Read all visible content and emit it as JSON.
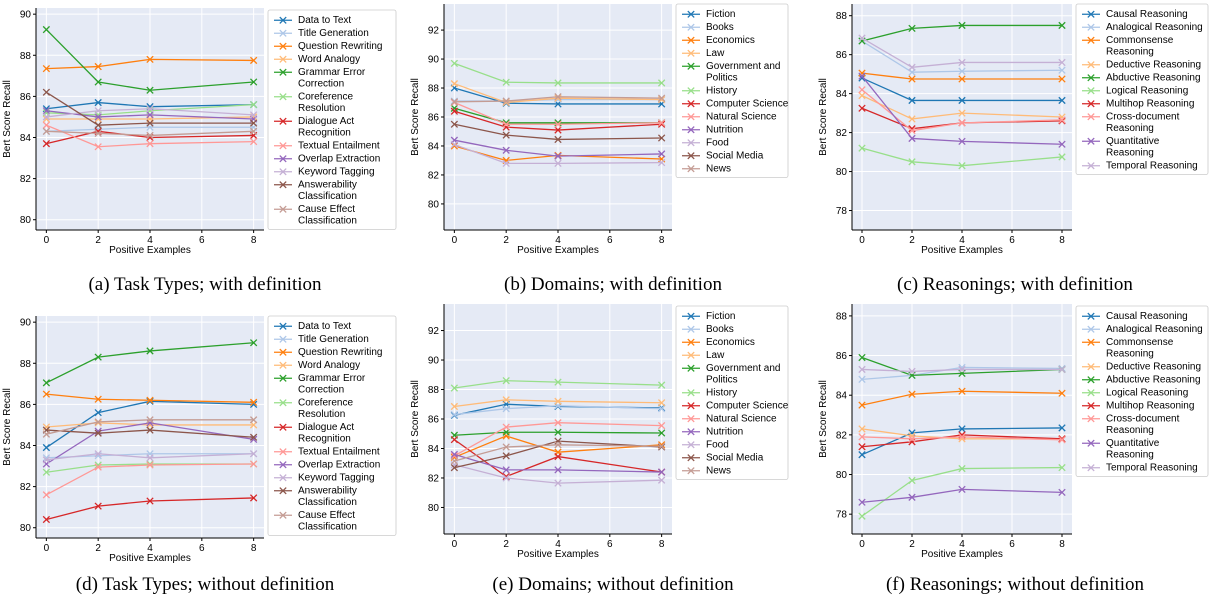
{
  "chart_data": [
    {
      "type": "line",
      "caption": "(a) Task Types; with definition",
      "xlabel": "Positive Examples",
      "ylabel": "Bert Score Recall",
      "x": [
        0,
        2,
        4,
        8
      ],
      "xticks": [
        0,
        2,
        4,
        6,
        8
      ],
      "xlim": [
        -0.4,
        8.4
      ],
      "ylim": [
        79.5,
        90.3
      ],
      "yticks": [
        80,
        82,
        84,
        86,
        88,
        90
      ],
      "grid": true,
      "background": "#e5eaf5",
      "legend_position": "right",
      "series": [
        {
          "name": "Data to Text",
          "color": "#1f77b4",
          "values": [
            85.4,
            85.7,
            85.5,
            85.6
          ]
        },
        {
          "name": "Title Generation",
          "color": "#aec7e8",
          "values": [
            84.3,
            84.4,
            84.5,
            84.5
          ]
        },
        {
          "name": "Question Rewriting",
          "color": "#ff7f0e",
          "values": [
            87.35,
            87.45,
            87.8,
            87.75
          ]
        },
        {
          "name": "Word Analogy",
          "color": "#ffbb78",
          "values": [
            84.9,
            84.9,
            84.9,
            85.0
          ]
        },
        {
          "name": "Grammar Error\nCorrection",
          "color": "#2ca02c",
          "values": [
            89.25,
            86.7,
            86.3,
            86.7
          ]
        },
        {
          "name": "Coreference\nResolution",
          "color": "#98df8a",
          "values": [
            85.2,
            85.1,
            85.3,
            85.6
          ]
        },
        {
          "name": "Dialogue Act\nRecognition",
          "color": "#d62728",
          "values": [
            83.7,
            84.3,
            84.0,
            84.1
          ]
        },
        {
          "name": "Textual Entailment",
          "color": "#ff9896",
          "values": [
            84.6,
            83.55,
            83.7,
            83.8
          ]
        },
        {
          "name": "Overlap Extraction",
          "color": "#9467bd",
          "values": [
            85.3,
            85.0,
            85.1,
            84.9
          ]
        },
        {
          "name": "Keyword Tagging",
          "color": "#c5b0d5",
          "values": [
            85.0,
            85.3,
            85.4,
            85.1
          ]
        },
        {
          "name": "Answerability\nClassification",
          "color": "#8c564b",
          "values": [
            86.2,
            84.6,
            84.7,
            84.7
          ]
        },
        {
          "name": "Cause Effect\nClassification",
          "color": "#c49c94",
          "values": [
            84.3,
            84.2,
            84.1,
            84.3
          ]
        }
      ]
    },
    {
      "type": "line",
      "caption": "(b) Domains; with definition",
      "xlabel": "Positive Examples",
      "ylabel": "Bert Score Recall",
      "x": [
        0,
        2,
        4,
        8
      ],
      "xticks": [
        0,
        2,
        4,
        6,
        8
      ],
      "xlim": [
        -0.4,
        8.4
      ],
      "ylim": [
        78.2,
        93.8
      ],
      "yticks": [
        80,
        82,
        84,
        86,
        88,
        90,
        92
      ],
      "grid": true,
      "background": "#e5eaf5",
      "legend_position": "right",
      "series": [
        {
          "name": "Fiction",
          "color": "#1f77b4",
          "values": [
            88.0,
            86.95,
            86.9,
            86.9
          ]
        },
        {
          "name": "Books",
          "color": "#aec7e8",
          "values": [
            87.1,
            87.1,
            87.2,
            87.2
          ]
        },
        {
          "name": "Economics",
          "color": "#ff7f0e",
          "values": [
            84.0,
            83.0,
            83.35,
            83.1
          ]
        },
        {
          "name": "Law",
          "color": "#ffbb78",
          "values": [
            88.3,
            87.0,
            87.3,
            87.2
          ]
        },
        {
          "name": "Government and\nPolitics",
          "color": "#2ca02c",
          "values": [
            86.6,
            85.6,
            85.6,
            85.6
          ]
        },
        {
          "name": "History",
          "color": "#98df8a",
          "values": [
            89.7,
            88.4,
            88.35,
            88.35
          ]
        },
        {
          "name": "Computer Science",
          "color": "#d62728",
          "values": [
            86.4,
            85.3,
            85.1,
            85.5
          ]
        },
        {
          "name": "Natural Science",
          "color": "#ff9896",
          "values": [
            87.0,
            85.5,
            85.5,
            85.6
          ]
        },
        {
          "name": "Nutrition",
          "color": "#9467bd",
          "values": [
            84.4,
            83.7,
            83.3,
            83.45
          ]
        },
        {
          "name": "Food",
          "color": "#c5b0d5",
          "values": [
            84.1,
            82.8,
            82.8,
            82.85
          ]
        },
        {
          "name": "Social Media",
          "color": "#8c564b",
          "values": [
            85.5,
            84.75,
            84.45,
            84.55
          ]
        },
        {
          "name": "News",
          "color": "#c49c94",
          "values": [
            87.05,
            87.1,
            87.4,
            87.3
          ]
        }
      ]
    },
    {
      "type": "line",
      "caption": "(c) Reasonings; with definition",
      "xlabel": "Positive Examples",
      "ylabel": "Bert Score Recall",
      "x": [
        0,
        2,
        4,
        8
      ],
      "xticks": [
        0,
        2,
        4,
        6,
        8
      ],
      "xlim": [
        -0.4,
        8.4
      ],
      "ylim": [
        77.0,
        88.6
      ],
      "yticks": [
        78,
        80,
        82,
        84,
        86,
        88
      ],
      "grid": true,
      "background": "#e5eaf5",
      "legend_position": "right",
      "series": [
        {
          "name": "Causal Reasoning",
          "color": "#1f77b4",
          "values": [
            84.8,
            83.65,
            83.65,
            83.65
          ]
        },
        {
          "name": "Analogical Reasoning",
          "color": "#aec7e8",
          "values": [
            86.7,
            85.1,
            85.15,
            85.2
          ]
        },
        {
          "name": "Commonsense\nReasoning",
          "color": "#ff7f0e",
          "values": [
            85.05,
            84.75,
            84.75,
            84.75
          ]
        },
        {
          "name": "Deductive Reasoning",
          "color": "#ffbb78",
          "values": [
            83.9,
            82.7,
            83.0,
            82.8
          ]
        },
        {
          "name": "Abductive Reasoning",
          "color": "#2ca02c",
          "values": [
            86.7,
            87.35,
            87.5,
            87.5
          ]
        },
        {
          "name": "Logical Reasoning",
          "color": "#98df8a",
          "values": [
            81.2,
            80.5,
            80.3,
            80.75
          ]
        },
        {
          "name": "Multihop Reasoning",
          "color": "#d62728",
          "values": [
            83.25,
            82.2,
            82.5,
            82.6
          ]
        },
        {
          "name": "Cross-document\nReasoning",
          "color": "#ff9896",
          "values": [
            84.2,
            82.1,
            82.5,
            82.65
          ]
        },
        {
          "name": "Quantitative\nReasoning",
          "color": "#9467bd",
          "values": [
            84.9,
            81.7,
            81.55,
            81.4
          ]
        },
        {
          "name": "Temporal Reasoning",
          "color": "#c5b0d5",
          "values": [
            86.85,
            85.35,
            85.6,
            85.6
          ]
        }
      ]
    },
    {
      "type": "line",
      "caption": "(d) Task Types; without definition",
      "xlabel": "Positive Examples",
      "ylabel": "Bert Score Recall",
      "x": [
        0,
        2,
        4,
        8
      ],
      "xticks": [
        0,
        2,
        4,
        6,
        8
      ],
      "xlim": [
        -0.4,
        8.4
      ],
      "ylim": [
        79.5,
        90.3
      ],
      "yticks": [
        80,
        82,
        84,
        86,
        88,
        90
      ],
      "grid": true,
      "background": "#e5eaf5",
      "legend_position": "right",
      "series": [
        {
          "name": "Data to Text",
          "color": "#1f77b4",
          "values": [
            83.9,
            85.6,
            86.15,
            86.0
          ]
        },
        {
          "name": "Title Generation",
          "color": "#aec7e8",
          "values": [
            83.4,
            83.5,
            83.6,
            83.6
          ]
        },
        {
          "name": "Question Rewriting",
          "color": "#ff7f0e",
          "values": [
            86.5,
            86.25,
            86.2,
            86.1
          ]
        },
        {
          "name": "Word Analogy",
          "color": "#ffbb78",
          "values": [
            84.9,
            85.1,
            85.0,
            85.0
          ]
        },
        {
          "name": "Grammar Error\nCorrection",
          "color": "#2ca02c",
          "values": [
            87.05,
            88.3,
            88.6,
            89.0
          ]
        },
        {
          "name": "Coreference\nResolution",
          "color": "#98df8a",
          "values": [
            82.7,
            83.05,
            83.1,
            83.1
          ]
        },
        {
          "name": "Dialogue Act\nRecognition",
          "color": "#d62728",
          "values": [
            80.4,
            81.05,
            81.3,
            81.45
          ]
        },
        {
          "name": "Textual Entailment",
          "color": "#ff9896",
          "values": [
            81.6,
            82.95,
            83.05,
            83.1
          ]
        },
        {
          "name": "Overlap Extraction",
          "color": "#9467bd",
          "values": [
            83.1,
            84.7,
            85.1,
            84.3
          ]
        },
        {
          "name": "Keyword Tagging",
          "color": "#c5b0d5",
          "values": [
            83.3,
            83.6,
            83.4,
            83.6
          ]
        },
        {
          "name": "Answerability\nClassification",
          "color": "#8c564b",
          "values": [
            84.75,
            84.6,
            84.75,
            84.4
          ]
        },
        {
          "name": "Cause Effect\nClassification",
          "color": "#c49c94",
          "values": [
            84.55,
            85.15,
            85.25,
            85.25
          ]
        }
      ]
    },
    {
      "type": "line",
      "caption": "(e) Domains; without definition",
      "xlabel": "Positive Examples",
      "ylabel": "Bert Score Recall",
      "x": [
        0,
        2,
        4,
        8
      ],
      "xticks": [
        0,
        2,
        4,
        6,
        8
      ],
      "xlim": [
        -0.4,
        8.4
      ],
      "ylim": [
        78.2,
        93.8
      ],
      "yticks": [
        80,
        82,
        84,
        86,
        88,
        90,
        92
      ],
      "grid": true,
      "background": "#e5eaf5",
      "legend_position": "right",
      "series": [
        {
          "name": "Fiction",
          "color": "#1f77b4",
          "values": [
            86.25,
            87.0,
            86.85,
            86.75
          ]
        },
        {
          "name": "Books",
          "color": "#aec7e8",
          "values": [
            86.3,
            86.7,
            86.9,
            86.7
          ]
        },
        {
          "name": "Economics",
          "color": "#ff7f0e",
          "values": [
            83.4,
            84.85,
            83.75,
            84.25
          ]
        },
        {
          "name": "Law",
          "color": "#ffbb78",
          "values": [
            86.85,
            87.3,
            87.2,
            87.1
          ]
        },
        {
          "name": "Government and\nPolitics",
          "color": "#2ca02c",
          "values": [
            84.9,
            85.1,
            85.1,
            85.05
          ]
        },
        {
          "name": "History",
          "color": "#98df8a",
          "values": [
            88.1,
            88.6,
            88.5,
            88.3
          ]
        },
        {
          "name": "Computer Science",
          "color": "#d62728",
          "values": [
            84.6,
            82.1,
            83.45,
            82.4
          ]
        },
        {
          "name": "Natural Science",
          "color": "#ff9896",
          "values": [
            83.5,
            85.45,
            85.75,
            85.55
          ]
        },
        {
          "name": "Nutrition",
          "color": "#9467bd",
          "values": [
            83.6,
            82.55,
            82.55,
            82.4
          ]
        },
        {
          "name": "Food",
          "color": "#c5b0d5",
          "values": [
            82.9,
            82.0,
            81.65,
            81.85
          ]
        },
        {
          "name": "Social Media",
          "color": "#8c564b",
          "values": [
            82.7,
            83.5,
            84.5,
            84.1
          ]
        },
        {
          "name": "News",
          "color": "#c49c94",
          "values": [
            83.15,
            84.1,
            84.25,
            84.15
          ]
        }
      ]
    },
    {
      "type": "line",
      "caption": "(f) Reasonings; without definition",
      "xlabel": "Positive Examples",
      "ylabel": "Bert Score Recall",
      "x": [
        0,
        2,
        4,
        8
      ],
      "xticks": [
        0,
        2,
        4,
        6,
        8
      ],
      "xlim": [
        -0.4,
        8.4
      ],
      "ylim": [
        77.0,
        88.6
      ],
      "yticks": [
        78,
        80,
        82,
        84,
        86,
        88
      ],
      "grid": true,
      "background": "#e5eaf5",
      "legend_position": "right",
      "series": [
        {
          "name": "Causal Reasoning",
          "color": "#1f77b4",
          "values": [
            81.0,
            82.1,
            82.3,
            82.35
          ]
        },
        {
          "name": "Analogical Reasoning",
          "color": "#aec7e8",
          "values": [
            84.8,
            85.0,
            85.4,
            85.35
          ]
        },
        {
          "name": "Commonsense\nReasoning",
          "color": "#ff7f0e",
          "values": [
            83.5,
            84.05,
            84.2,
            84.1
          ]
        },
        {
          "name": "Deductive Reasoning",
          "color": "#ffbb78",
          "values": [
            82.3,
            81.95,
            81.8,
            81.8
          ]
        },
        {
          "name": "Abductive Reasoning",
          "color": "#2ca02c",
          "values": [
            85.9,
            85.0,
            85.1,
            85.3
          ]
        },
        {
          "name": "Logical Reasoning",
          "color": "#98df8a",
          "values": [
            77.9,
            79.7,
            80.3,
            80.35
          ]
        },
        {
          "name": "Multihop Reasoning",
          "color": "#d62728",
          "values": [
            81.4,
            81.65,
            82.0,
            81.8
          ]
        },
        {
          "name": "Cross-document\nReasoning",
          "color": "#ff9896",
          "values": [
            81.9,
            81.8,
            81.9,
            81.75
          ]
        },
        {
          "name": "Quantitative\nReasoning",
          "color": "#9467bd",
          "values": [
            78.6,
            78.85,
            79.25,
            79.1
          ]
        },
        {
          "name": "Temporal Reasoning",
          "color": "#c5b0d5",
          "values": [
            85.3,
            85.2,
            85.3,
            85.3
          ]
        }
      ]
    }
  ]
}
